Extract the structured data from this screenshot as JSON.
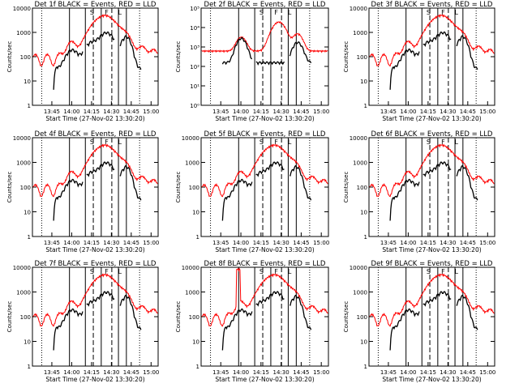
{
  "chart_data": [
    {
      "type": "line",
      "title": "Det 1f BLACK = Events, RED = LLD",
      "ylabel": "Counts/sec",
      "xlabel": "Start Time (27-Nov-02 13:30:20)",
      "ylim": [
        1,
        10000
      ],
      "xticks": [
        "13:45",
        "14:00",
        "14:15",
        "14:30",
        "14:45",
        "15:00"
      ],
      "yticks": [
        "1",
        "10",
        "100",
        "1000",
        "10000"
      ],
      "markers": [
        "S",
        "F",
        "L"
      ],
      "series": [
        {
          "name": "Events",
          "color": "#000000"
        },
        {
          "name": "LLD",
          "color": "#ff0000"
        }
      ]
    },
    {
      "type": "line",
      "title": "Det 2f BLACK = Events, RED = LLD",
      "ylabel": "Counts/sec",
      "xlabel": "Start Time (27-Nov-02 13:30:20)",
      "ylim": [
        1,
        100000
      ],
      "xticks": [
        "13:45",
        "14:00",
        "14:15",
        "14:30",
        "14:45",
        "15:00"
      ],
      "yticks": [
        "10⁰",
        "10¹",
        "10²",
        "10³",
        "10⁴",
        "10⁵"
      ],
      "markers": [
        "S",
        "F",
        "L"
      ],
      "series": [
        {
          "name": "Events",
          "color": "#000000"
        },
        {
          "name": "LLD",
          "color": "#ff0000"
        }
      ]
    },
    {
      "type": "line",
      "title": "Det 3f BLACK = Events, RED = LLD",
      "ylabel": "Counts/sec",
      "xlabel": "Start Time (27-Nov-02 13:30:20)",
      "ylim": [
        1,
        10000
      ],
      "xticks": [
        "13:45",
        "14:00",
        "14:15",
        "14:30",
        "14:45",
        "15:00"
      ],
      "yticks": [
        "1",
        "10",
        "100",
        "1000",
        "10000"
      ],
      "markers": [
        "S",
        "F",
        "L"
      ],
      "series": [
        {
          "name": "Events",
          "color": "#000000"
        },
        {
          "name": "LLD",
          "color": "#ff0000"
        }
      ]
    },
    {
      "type": "line",
      "title": "Det 4f BLACK = Events, RED = LLD",
      "ylabel": "Counts/sec",
      "xlabel": "Start Time (27-Nov-02 13:30:20)",
      "ylim": [
        1,
        10000
      ],
      "xticks": [
        "13:45",
        "14:00",
        "14:15",
        "14:30",
        "14:45",
        "15:00"
      ],
      "yticks": [
        "1",
        "10",
        "100",
        "1000",
        "10000"
      ],
      "markers": [
        "S",
        "F",
        "L"
      ],
      "series": [
        {
          "name": "Events",
          "color": "#000000"
        },
        {
          "name": "LLD",
          "color": "#ff0000"
        }
      ]
    },
    {
      "type": "line",
      "title": "Det 5f BLACK = Events, RED = LLD",
      "ylabel": "Counts/sec",
      "xlabel": "Start Time (27-Nov-02 13:30:20)",
      "ylim": [
        1,
        10000
      ],
      "xticks": [
        "13:45",
        "14:00",
        "14:15",
        "14:30",
        "14:45",
        "15:00"
      ],
      "yticks": [
        "1",
        "10",
        "100",
        "1000",
        "10000"
      ],
      "markers": [
        "S",
        "F",
        "L"
      ],
      "series": [
        {
          "name": "Events",
          "color": "#000000"
        },
        {
          "name": "LLD",
          "color": "#ff0000"
        }
      ]
    },
    {
      "type": "line",
      "title": "Det 6f BLACK = Events, RED = LLD",
      "ylabel": "Counts/sec",
      "xlabel": "Start Time (27-Nov-02 13:30:20)",
      "ylim": [
        1,
        10000
      ],
      "xticks": [
        "13:45",
        "14:00",
        "14:15",
        "14:30",
        "14:45",
        "15:00"
      ],
      "yticks": [
        "1",
        "10",
        "100",
        "1000",
        "10000"
      ],
      "markers": [
        "S",
        "F",
        "L"
      ],
      "series": [
        {
          "name": "Events",
          "color": "#000000"
        },
        {
          "name": "LLD",
          "color": "#ff0000"
        }
      ]
    },
    {
      "type": "line",
      "title": "Det 7f BLACK = Events, RED = LLD",
      "ylabel": "Counts/sec",
      "xlabel": "Start Time (27-Nov-02 13:30:20)",
      "ylim": [
        1,
        10000
      ],
      "xticks": [
        "13:45",
        "14:00",
        "14:15",
        "14:30",
        "14:45",
        "15:00"
      ],
      "yticks": [
        "1",
        "10",
        "100",
        "1000",
        "10000"
      ],
      "markers": [
        "S",
        "F",
        "L"
      ],
      "series": [
        {
          "name": "Events",
          "color": "#000000"
        },
        {
          "name": "LLD",
          "color": "#ff0000"
        }
      ]
    },
    {
      "type": "line",
      "title": "Det 8f BLACK = Events, RED = LLD",
      "ylabel": "Counts/sec",
      "xlabel": "Start Time (27-Nov-02 13:30:20)",
      "ylim": [
        1,
        10000
      ],
      "xticks": [
        "13:45",
        "14:00",
        "14:15",
        "14:30",
        "14:45",
        "15:00"
      ],
      "yticks": [
        "1",
        "10",
        "100",
        "1000",
        "10000"
      ],
      "markers": [
        "S",
        "F",
        "L"
      ],
      "series": [
        {
          "name": "Events",
          "color": "#000000"
        },
        {
          "name": "LLD",
          "color": "#ff0000"
        }
      ]
    },
    {
      "type": "line",
      "title": "Det 9f BLACK = Events, RED = LLD",
      "ylabel": "Counts/sec",
      "xlabel": "Start Time (27-Nov-02 13:30:20)",
      "ylim": [
        1,
        10000
      ],
      "xticks": [
        "13:45",
        "14:00",
        "14:15",
        "14:30",
        "14:45",
        "15:00"
      ],
      "yticks": [
        "1",
        "10",
        "100",
        "1000",
        "10000"
      ],
      "markers": [
        "S",
        "F",
        "L"
      ],
      "series": [
        {
          "name": "Events",
          "color": "#000000"
        },
        {
          "name": "LLD",
          "color": "#ff0000"
        }
      ]
    }
  ]
}
